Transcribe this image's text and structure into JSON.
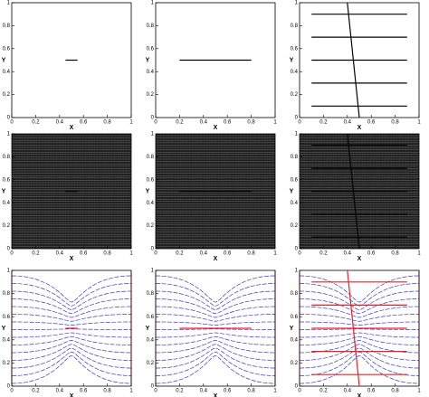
{
  "chart_data": [
    {
      "type": "line",
      "xlabel": "X",
      "ylabel": "Y",
      "xlim": [
        0,
        1
      ],
      "ylim": [
        0,
        1
      ],
      "xticks": [
        0,
        0.2,
        0.4,
        0.6,
        0.8,
        1
      ],
      "yticks": [
        0,
        0.2,
        0.4,
        0.6,
        0.8,
        1
      ],
      "color": "#000000",
      "background": "plain",
      "segments": [
        {
          "x": [
            0.45,
            0.55
          ],
          "y": [
            0.5,
            0.5
          ]
        }
      ]
    },
    {
      "type": "line",
      "xlabel": "X",
      "ylabel": "Y",
      "xlim": [
        0,
        1
      ],
      "ylim": [
        0,
        1
      ],
      "xticks": [
        0,
        0.2,
        0.4,
        0.6,
        0.8,
        1
      ],
      "yticks": [
        0,
        0.2,
        0.4,
        0.6,
        0.8,
        1
      ],
      "color": "#000000",
      "background": "plain",
      "segments": [
        {
          "x": [
            0.2,
            0.8
          ],
          "y": [
            0.5,
            0.5
          ]
        }
      ]
    },
    {
      "type": "line",
      "xlabel": "X",
      "ylabel": "Y",
      "xlim": [
        0,
        1
      ],
      "ylim": [
        0,
        1
      ],
      "xticks": [
        0,
        0.2,
        0.4,
        0.6,
        0.8,
        1
      ],
      "yticks": [
        0,
        0.2,
        0.4,
        0.6,
        0.8,
        1
      ],
      "color": "#000000",
      "background": "plain",
      "segments": [
        {
          "x": [
            0.1,
            0.9
          ],
          "y": [
            0.9,
            0.9
          ]
        },
        {
          "x": [
            0.1,
            0.9
          ],
          "y": [
            0.7,
            0.7
          ]
        },
        {
          "x": [
            0.1,
            0.9
          ],
          "y": [
            0.5,
            0.5
          ]
        },
        {
          "x": [
            0.1,
            0.9
          ],
          "y": [
            0.3,
            0.3
          ]
        },
        {
          "x": [
            0.1,
            0.9
          ],
          "y": [
            0.1,
            0.1
          ]
        },
        {
          "x": [
            0.4,
            0.5
          ],
          "y": [
            1,
            0
          ]
        }
      ]
    },
    {
      "type": "line",
      "xlabel": "X",
      "ylabel": "Y",
      "xlim": [
        0,
        1
      ],
      "ylim": [
        0,
        1
      ],
      "xticks": [
        0,
        0.2,
        0.4,
        0.6,
        0.8,
        1
      ],
      "yticks": [
        0,
        0.2,
        0.4,
        0.6,
        0.8,
        1
      ],
      "color": "#000000",
      "background": "mesh",
      "segments": [
        {
          "x": [
            0.45,
            0.55
          ],
          "y": [
            0.5,
            0.5
          ]
        }
      ]
    },
    {
      "type": "line",
      "xlabel": "X",
      "ylabel": "Y",
      "xlim": [
        0,
        1
      ],
      "ylim": [
        0,
        1
      ],
      "xticks": [
        0,
        0.2,
        0.4,
        0.6,
        0.8,
        1
      ],
      "yticks": [
        0,
        0.2,
        0.4,
        0.6,
        0.8,
        1
      ],
      "color": "#000000",
      "background": "mesh",
      "segments": [
        {
          "x": [
            0.2,
            0.8
          ],
          "y": [
            0.5,
            0.5
          ]
        }
      ]
    },
    {
      "type": "line",
      "xlabel": "X",
      "ylabel": "Y",
      "xlim": [
        0,
        1
      ],
      "ylim": [
        0,
        1
      ],
      "xticks": [
        0,
        0.2,
        0.4,
        0.6,
        0.8,
        1
      ],
      "yticks": [
        0,
        0.2,
        0.4,
        0.6,
        0.8,
        1
      ],
      "color": "#000000",
      "background": "mesh",
      "segments": [
        {
          "x": [
            0.1,
            0.9
          ],
          "y": [
            0.9,
            0.9
          ]
        },
        {
          "x": [
            0.1,
            0.9
          ],
          "y": [
            0.7,
            0.7
          ]
        },
        {
          "x": [
            0.1,
            0.9
          ],
          "y": [
            0.5,
            0.5
          ]
        },
        {
          "x": [
            0.1,
            0.9
          ],
          "y": [
            0.3,
            0.3
          ]
        },
        {
          "x": [
            0.1,
            0.9
          ],
          "y": [
            0.1,
            0.1
          ]
        },
        {
          "x": [
            0.4,
            0.5
          ],
          "y": [
            1,
            0
          ]
        }
      ]
    },
    {
      "type": "line",
      "xlabel": "X",
      "ylabel": "Y",
      "xlim": [
        0,
        1
      ],
      "ylim": [
        0,
        1
      ],
      "xticks": [
        0,
        0.2,
        0.4,
        0.6,
        0.8,
        1
      ],
      "yticks": [
        0,
        0.2,
        0.4,
        0.6,
        0.8,
        1
      ],
      "color": "#e8202a",
      "background": "streamlines",
      "segments": [
        {
          "x": [
            0.45,
            0.55
          ],
          "y": [
            0.5,
            0.5
          ]
        }
      ]
    },
    {
      "type": "line",
      "xlabel": "X",
      "ylabel": "Y",
      "xlim": [
        0,
        1
      ],
      "ylim": [
        0,
        1
      ],
      "xticks": [
        0,
        0.2,
        0.4,
        0.6,
        0.8,
        1
      ],
      "yticks": [
        0,
        0.2,
        0.4,
        0.6,
        0.8,
        1
      ],
      "color": "#e8202a",
      "background": "streamlines",
      "segments": [
        {
          "x": [
            0.2,
            0.8
          ],
          "y": [
            0.5,
            0.5
          ]
        }
      ]
    },
    {
      "type": "line",
      "xlabel": "X",
      "ylabel": "Y",
      "xlim": [
        0,
        1
      ],
      "ylim": [
        0,
        1
      ],
      "xticks": [
        0,
        0.2,
        0.4,
        0.6,
        0.8,
        1
      ],
      "yticks": [
        0,
        0.2,
        0.4,
        0.6,
        0.8,
        1
      ],
      "color": "#e8202a",
      "background": "streamlines",
      "segments": [
        {
          "x": [
            0.1,
            0.9
          ],
          "y": [
            0.9,
            0.9
          ]
        },
        {
          "x": [
            0.1,
            0.9
          ],
          "y": [
            0.7,
            0.7
          ]
        },
        {
          "x": [
            0.1,
            0.9
          ],
          "y": [
            0.5,
            0.5
          ]
        },
        {
          "x": [
            0.1,
            0.9
          ],
          "y": [
            0.3,
            0.3
          ]
        },
        {
          "x": [
            0.1,
            0.9
          ],
          "y": [
            0.1,
            0.1
          ]
        },
        {
          "x": [
            0.4,
            0.5
          ],
          "y": [
            1,
            0
          ]
        }
      ]
    }
  ]
}
